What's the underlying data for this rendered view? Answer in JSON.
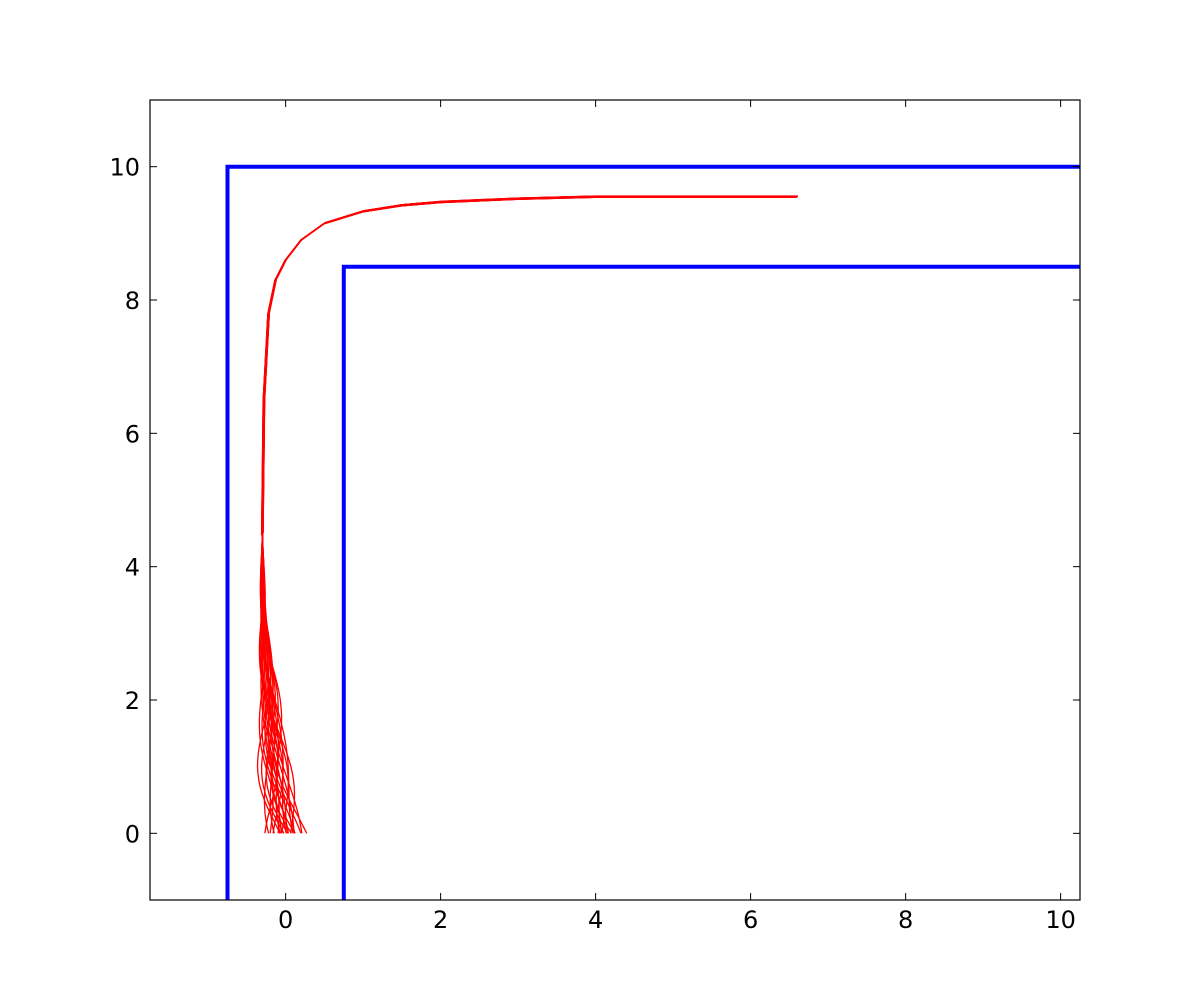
{
  "chart_data": {
    "type": "line",
    "title": "",
    "xlabel": "",
    "ylabel": "",
    "xlim": [
      -1.75,
      10.25
    ],
    "ylim": [
      -1,
      11
    ],
    "xticks": [
      0,
      2,
      4,
      6,
      8,
      10
    ],
    "yticks": [
      0,
      2,
      4,
      6,
      8,
      10
    ],
    "grid": false,
    "legend": "none",
    "colors": {
      "walls": "#0000ff",
      "trajectories": "#ff0000",
      "axes": "#000000"
    },
    "walls": [
      {
        "x": [
          -0.75,
          -0.75,
          10.25
        ],
        "y": [
          -1,
          10,
          10
        ]
      },
      {
        "x": [
          0.75,
          0.75,
          10.25
        ],
        "y": [
          -1,
          8.5,
          8.5
        ]
      }
    ],
    "trajectories": {
      "count": 24,
      "start_x_range": [
        -0.2,
        0.2
      ],
      "start_y": 0,
      "shared_path": {
        "x": [
          -0.3,
          -0.28,
          -0.22,
          -0.13,
          0,
          0.2,
          0.5,
          1.0,
          1.5,
          2.0,
          3.0,
          4.0,
          5.0,
          6.0,
          6.6
        ],
        "y": [
          4.5,
          6.5,
          7.8,
          8.3,
          8.6,
          8.9,
          9.15,
          9.33,
          9.42,
          9.47,
          9.52,
          9.55,
          9.55,
          9.55,
          9.55
        ]
      }
    }
  }
}
